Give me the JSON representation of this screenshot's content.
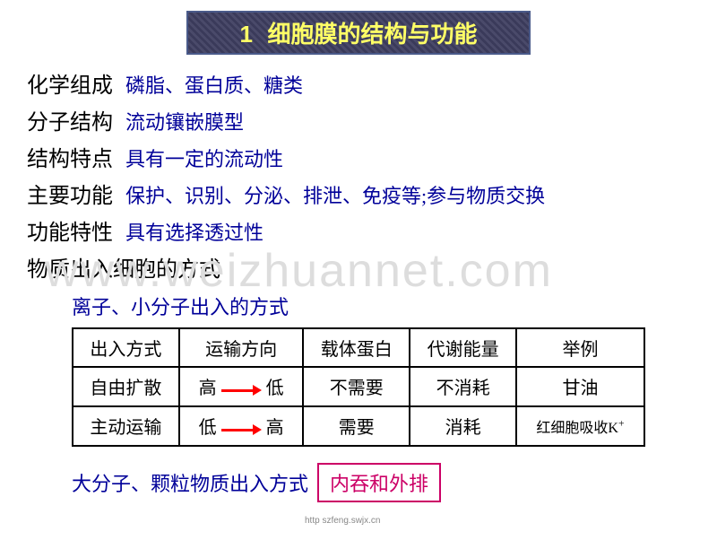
{
  "title": {
    "num": "1",
    "text": "细胞膜的结构与功能"
  },
  "rows": [
    {
      "label": "化学组成",
      "value": "磷脂、蛋白质、糖类"
    },
    {
      "label": "分子结构",
      "value": "流动镶嵌膜型"
    },
    {
      "label": "结构特点",
      "value": "具有一定的流动性"
    },
    {
      "label": "主要功能",
      "value": "保护、识别、分泌、排泄、免疫等;参与物质交换"
    },
    {
      "label": "功能特性",
      "value": "具有选择透过性"
    }
  ],
  "sub_heading": "物质出入细胞的方式",
  "sub_sub": "离子、小分子出入的方式",
  "watermark": "www.weizhuannet.com",
  "table": {
    "headers": [
      "出入方式",
      "运输方向",
      "载体蛋白",
      "代谢能量",
      "举例"
    ],
    "row1": {
      "c0": "自由扩散",
      "c1a": "高",
      "c1b": "低",
      "c2": "不需要",
      "c3": "不消耗",
      "c4": "甘油"
    },
    "row2": {
      "c0": "主动运输",
      "c1a": "低",
      "c1b": "高",
      "c2": "需要",
      "c3": "消耗",
      "c4_pre": "红细胞吸收K",
      "c4_sup": "+"
    },
    "colors": {
      "border": "#000000",
      "arrow": "#ff0000",
      "text": "#000000"
    }
  },
  "bottom": {
    "text": "大分子、颗粒物质出入方式",
    "box": "内吞和外排",
    "box_color": "#cc0066"
  },
  "footer": "http szfeng.swjx.cn"
}
